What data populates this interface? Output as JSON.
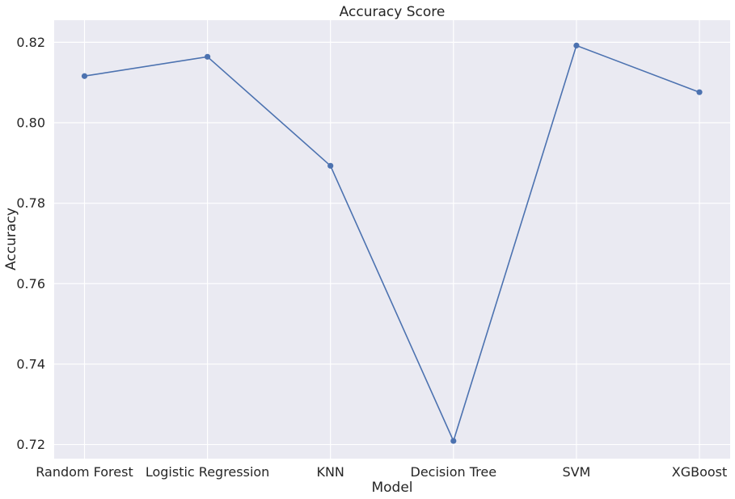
{
  "chart_data": {
    "type": "line",
    "title": "Accuracy Score",
    "xlabel": "Model",
    "ylabel": "Accuracy",
    "categories": [
      "Random Forest",
      "Logistic Regression",
      "KNN",
      "Decision Tree",
      "SVM",
      "XGBoost"
    ],
    "series": [
      {
        "values": [
          0.8116,
          0.8164,
          0.7893,
          0.7209,
          0.8192,
          0.8076
        ],
        "color": "#4c72b0",
        "marker": "circle"
      }
    ],
    "ylim": [
      0.7165,
      0.8255
    ],
    "yticks": [
      0.72,
      0.74,
      0.76,
      0.78,
      0.8,
      0.82
    ],
    "ytick_labels": [
      "0.72",
      "0.74",
      "0.76",
      "0.78",
      "0.80",
      "0.82"
    ],
    "grid": true,
    "background_color": "#eaeaf2",
    "grid_color": "#ffffff"
  }
}
